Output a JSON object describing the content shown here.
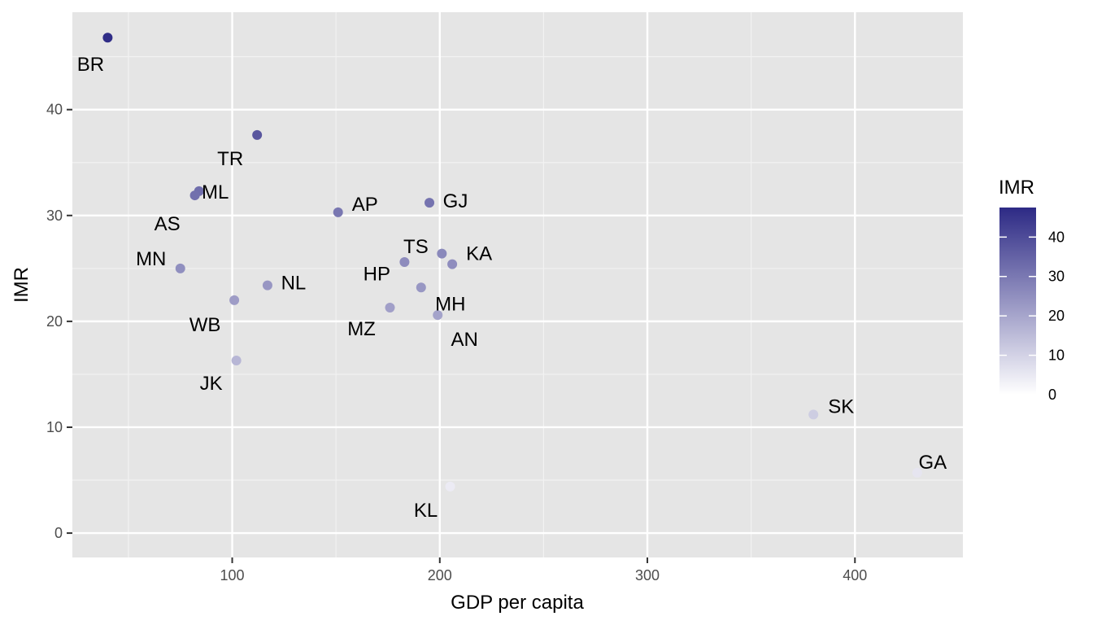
{
  "chart_data": {
    "type": "scatter",
    "xlabel": "GDP per capita",
    "ylabel": "IMR",
    "xlim": [
      23,
      452
    ],
    "ylim": [
      -2.3,
      49.2
    ],
    "x_major_ticks": [
      100,
      200,
      300,
      400
    ],
    "x_minor_ticks": [
      50,
      150,
      250,
      350
    ],
    "y_major_ticks": [
      0,
      10,
      20,
      30,
      40
    ],
    "y_minor_ticks": [
      5,
      15,
      25,
      35,
      45
    ],
    "grid": true,
    "color_scale": {
      "title": "IMR",
      "low_color": "#ffffff",
      "high_color": "#2d2a85",
      "min": 0,
      "max": 47.5,
      "ticks": [
        0,
        10,
        20,
        30,
        40
      ],
      "placement": "right"
    },
    "points": [
      {
        "label": "BR",
        "x": 40,
        "y": 46.8
      },
      {
        "label": "TR",
        "x": 112,
        "y": 37.6
      },
      {
        "label": "ML",
        "x": 84,
        "y": 32.3
      },
      {
        "label": "AS",
        "x": 82,
        "y": 31.9
      },
      {
        "label": "AP",
        "x": 151,
        "y": 30.3
      },
      {
        "label": "GJ",
        "x": 195,
        "y": 31.2
      },
      {
        "label": "TS",
        "x": 183,
        "y": 25.6
      },
      {
        "label": "KA",
        "x": 206,
        "y": 25.4
      },
      {
        "label": "MN",
        "x": 75,
        "y": 25.0
      },
      {
        "label": "NL",
        "x": 117,
        "y": 23.4
      },
      {
        "label": "HP",
        "x": 201,
        "y": 26.4
      },
      {
        "label": "MH",
        "x": 191,
        "y": 23.2
      },
      {
        "label": "WB",
        "x": 101,
        "y": 22.0
      },
      {
        "label": "MZ",
        "x": 176,
        "y": 21.3
      },
      {
        "label": "AN",
        "x": 199,
        "y": 20.6
      },
      {
        "label": "JK",
        "x": 102,
        "y": 16.3
      },
      {
        "label": "SK",
        "x": 380,
        "y": 11.2
      },
      {
        "label": "GA",
        "x": 430,
        "y": 5.7
      },
      {
        "label": "KL",
        "x": 205,
        "y": 4.4
      }
    ]
  }
}
